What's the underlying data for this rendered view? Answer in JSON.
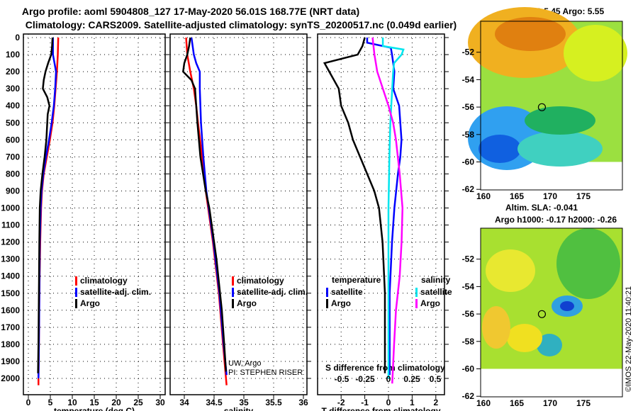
{
  "title_line1": "Argo profile: aoml 5904808_127 17-May-2020 56.01S 168.77E (NRT data)",
  "title_line2": "Climatology: CARS2009. Satellite-adjusted climatology: synTS_20200517.nc (0.049d earlier)",
  "credit_line1": "UW, Argo",
  "credit_line2": "PI: STEPHEN RISER",
  "footer": "©IMOS 22-May-2020 11:40:21",
  "colors": {
    "argo": "#000000",
    "climatology": "#ff0000",
    "satellite": "#0000ff",
    "sal_satellite": "#00e5ee",
    "sal_argo": "#ff00ff"
  },
  "chart_data": [
    {
      "type": "line",
      "title": "temperature",
      "xlabel": "temperature (deg C)",
      "ylabel": "depth",
      "xlim": [
        -1.5,
        31
      ],
      "ylim": [
        2050,
        0
      ],
      "xticks": [
        0,
        5,
        10,
        15,
        20,
        25,
        30
      ],
      "yticks": [
        0,
        100,
        200,
        300,
        400,
        500,
        600,
        700,
        800,
        900,
        1000,
        1100,
        1200,
        1300,
        1400,
        1500,
        1600,
        1700,
        1800,
        1900,
        2000
      ],
      "legend": [
        "climatology",
        "satellite-adj. clim.",
        "Argo"
      ],
      "series": [
        {
          "name": "climatology",
          "color": "#ff0000",
          "depth": [
            0,
            100,
            200,
            300,
            400,
            500,
            600,
            700,
            800,
            900,
            1000,
            1200,
            1500,
            1800,
            2000,
            2040
          ],
          "values": [
            6.8,
            6.7,
            6.5,
            6.2,
            5.9,
            5.5,
            4.9,
            4.2,
            3.5,
            3.1,
            2.9,
            2.7,
            2.5,
            2.4,
            2.3,
            2.3
          ]
        },
        {
          "name": "satellite-adj. clim.",
          "color": "#0000ff",
          "depth": [
            0,
            100,
            200,
            300,
            400,
            500,
            600,
            700,
            800,
            900,
            1000,
            1200,
            1500,
            1800,
            2000
          ],
          "values": [
            5.6,
            5.6,
            6.3,
            6.1,
            5.8,
            5.3,
            4.7,
            4.0,
            3.4,
            3.0,
            2.8,
            2.6,
            2.5,
            2.4,
            2.3
          ]
        },
        {
          "name": "Argo",
          "color": "#000000",
          "depth": [
            0,
            50,
            100,
            150,
            200,
            250,
            300,
            350,
            400,
            450,
            500,
            600,
            700,
            800,
            900,
            1000,
            1200,
            1500,
            1800,
            1970
          ],
          "values": [
            5.5,
            5.4,
            5.2,
            4.5,
            3.9,
            3.5,
            3.3,
            4.3,
            4.8,
            4.4,
            4.3,
            4.1,
            3.7,
            3.2,
            2.8,
            2.6,
            2.5,
            2.4,
            2.3,
            2.2
          ]
        }
      ]
    },
    {
      "type": "line",
      "title": "salinity",
      "xlabel": "salinity",
      "xlim": [
        33.75,
        36.1
      ],
      "ylim": [
        2050,
        0
      ],
      "xticks": [
        34,
        34.5,
        35,
        35.5,
        36
      ],
      "legend": [
        "climatology",
        "satellite-adj. clim.",
        "Argo"
      ],
      "series": [
        {
          "name": "climatology",
          "color": "#ff0000",
          "depth": [
            0,
            100,
            200,
            300,
            400,
            500,
            700,
            900,
            1000,
            1200,
            1500,
            1800,
            2000,
            2040
          ],
          "values": [
            34.03,
            34.05,
            34.1,
            34.16,
            34.2,
            34.23,
            34.3,
            34.36,
            34.4,
            34.48,
            34.58,
            34.65,
            34.7,
            34.71
          ]
        },
        {
          "name": "satellite-adj. clim.",
          "color": "#0000ff",
          "depth": [
            0,
            100,
            150,
            200,
            300,
            400,
            500,
            700,
            900,
            1000,
            1200,
            1500,
            1800,
            1980
          ],
          "values": [
            34.12,
            34.16,
            34.2,
            34.26,
            34.26,
            34.27,
            34.28,
            34.32,
            34.37,
            34.41,
            34.49,
            34.59,
            34.66,
            34.71
          ]
        },
        {
          "name": "Argo",
          "color": "#000000",
          "depth": [
            0,
            50,
            100,
            150,
            200,
            250,
            300,
            400,
            500,
            700,
            900,
            1000,
            1200,
            1300,
            1500,
            1600,
            1800,
            1960
          ],
          "values": [
            34.1,
            34.08,
            34.05,
            34.0,
            33.98,
            34.12,
            34.18,
            34.2,
            34.22,
            34.27,
            34.36,
            34.42,
            34.5,
            34.54,
            34.6,
            34.63,
            34.67,
            34.7
          ]
        }
      ]
    },
    {
      "type": "line",
      "title": "difference from climatology",
      "xlabel": "T difference from climatology",
      "x2label": "S difference from climatology",
      "xlim": [
        -3,
        2.4
      ],
      "ylim": [
        2050,
        0
      ],
      "xticks": [
        -2,
        -1,
        0,
        1,
        2
      ],
      "x2ticks": [
        -0.5,
        -0.25,
        0,
        0.25,
        0.5
      ],
      "x2tick_labels": [
        "-0.5",
        "-0.25",
        "0",
        "0.25",
        "0.5"
      ],
      "legend_temperature_title": "temperature",
      "legend_salinity_title": "salinity",
      "legend": [
        "satellite",
        "Argo",
        "satellite",
        "Argo"
      ],
      "series": [
        {
          "name": "T satellite",
          "color": "#0000ff",
          "axis": "T",
          "depth": [
            0,
            30,
            60,
            100,
            200,
            300,
            400,
            500,
            600,
            700,
            800,
            1000,
            1200,
            1500,
            1800,
            1980
          ],
          "values": [
            -0.9,
            -0.9,
            0.1,
            0.15,
            0.25,
            0.2,
            0.45,
            0.5,
            0.55,
            0.5,
            0.4,
            0.25,
            0.15,
            0.05,
            0.05,
            0.05
          ]
        },
        {
          "name": "T Argo",
          "color": "#000000",
          "axis": "T",
          "depth": [
            0,
            50,
            100,
            150,
            200,
            250,
            300,
            400,
            500,
            600,
            700,
            800,
            900,
            1000,
            1200,
            1500,
            1800,
            1970
          ],
          "values": [
            -1.0,
            -1.1,
            -1.3,
            -2.7,
            -2.5,
            -2.3,
            -2.1,
            -2.0,
            -1.7,
            -1.5,
            -1.2,
            -0.9,
            -0.6,
            -0.4,
            -0.25,
            -0.15,
            -0.15,
            -0.15
          ]
        },
        {
          "name": "S satellite",
          "color": "#00e5ee",
          "axis": "S",
          "depth": [
            0,
            50,
            70,
            100,
            150,
            200,
            300,
            500,
            700,
            1000,
            1500,
            2000
          ],
          "values": [
            -0.06,
            -0.06,
            0.16,
            0.14,
            0.06,
            0.05,
            0.04,
            0.02,
            0.01,
            0.0,
            0.0,
            0.0
          ]
        },
        {
          "name": "S Argo",
          "color": "#ff00ff",
          "axis": "S",
          "depth": [
            0,
            100,
            200,
            300,
            400,
            500,
            600,
            800,
            1000,
            1200,
            1400,
            1600,
            1800,
            2030
          ],
          "values": [
            -0.17,
            -0.15,
            -0.12,
            -0.06,
            0.0,
            0.05,
            0.08,
            0.12,
            0.15,
            0.14,
            0.12,
            0.08,
            0.06,
            0.04
          ]
        }
      ]
    },
    {
      "type": "heatmap",
      "title": "sat. SST: 5.45 Argo: 5.55",
      "xticks": [
        160,
        165,
        170,
        175
      ],
      "yticks": [
        -52,
        -54,
        -56,
        -58,
        -60,
        -62
      ],
      "profile_location": {
        "lon": 168.77,
        "lat": -56.01
      }
    },
    {
      "type": "heatmap",
      "title_line1": "Altim. SLA: -0.041",
      "title_line2": "Argo h1000: -0.17 h2000: -0.26",
      "xticks": [
        160,
        165,
        170,
        175
      ],
      "yticks": [
        -52,
        -54,
        -56,
        -58,
        -60,
        -62
      ],
      "profile_location": {
        "lon": 168.77,
        "lat": -56.01
      }
    }
  ]
}
